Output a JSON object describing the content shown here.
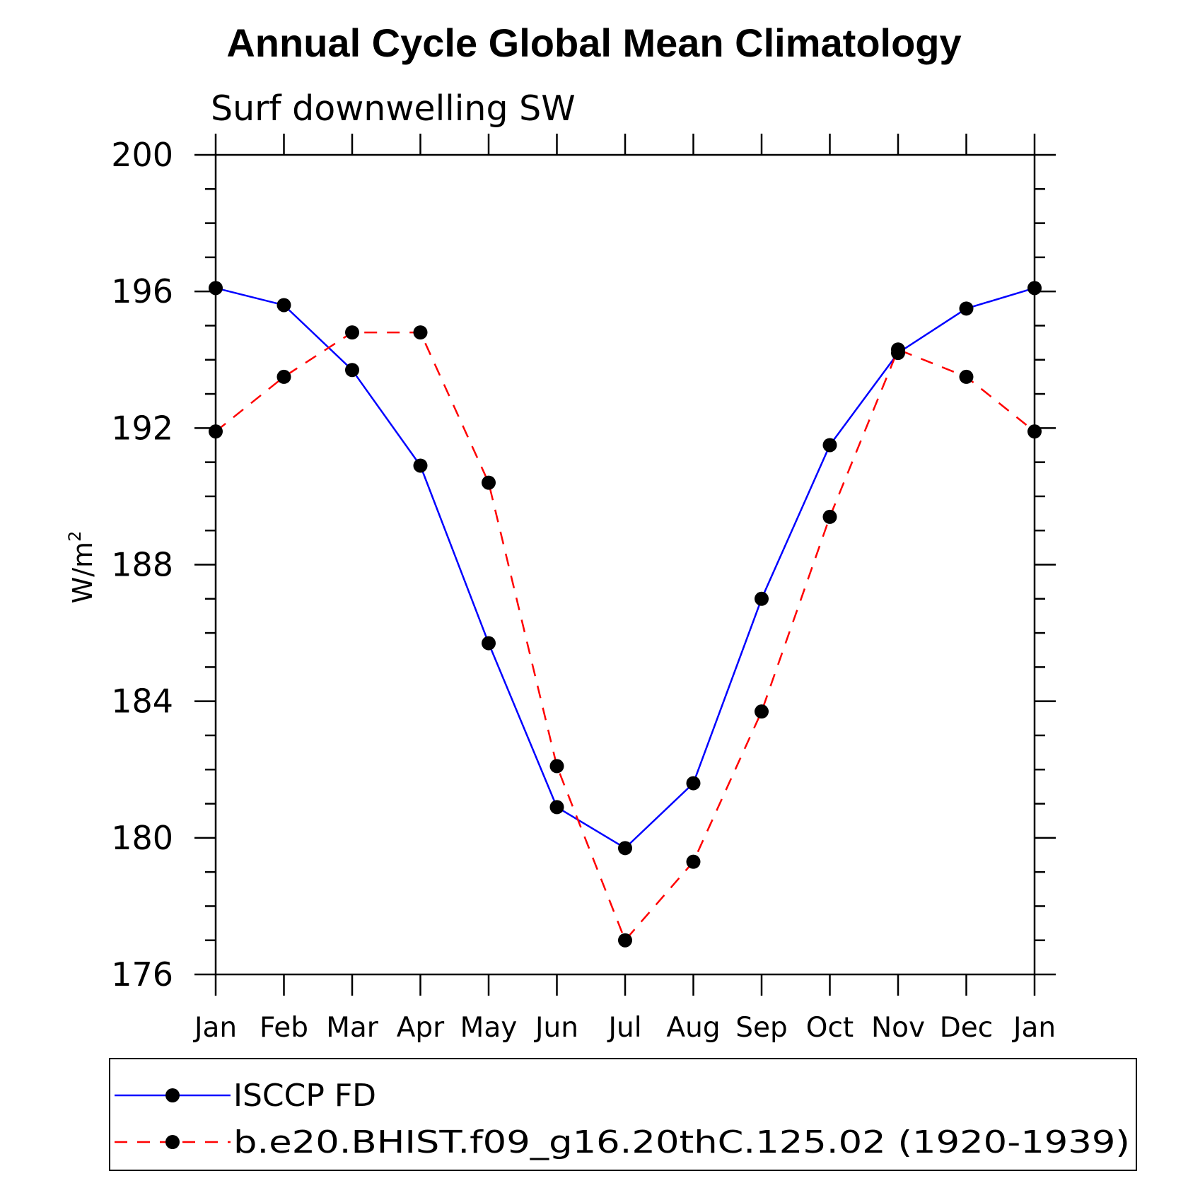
{
  "chart_data": {
    "type": "line",
    "title": "Annual Cycle Global Mean Climatology",
    "subtitle": "Surf downwelling SW",
    "ylabel": "W/m",
    "ylabel_superscript": "2",
    "xlabel": "",
    "ylim": [
      176,
      200
    ],
    "y_ticks": [
      176,
      180,
      184,
      188,
      192,
      196,
      200
    ],
    "y_tick_labels": [
      "176",
      "180",
      "184",
      "188",
      "192",
      "196",
      "200"
    ],
    "y_minor_step": 1,
    "grid": false,
    "categories": [
      "Jan",
      "Feb",
      "Mar",
      "Apr",
      "May",
      "Jun",
      "Jul",
      "Aug",
      "Sep",
      "Oct",
      "Nov",
      "Dec",
      "Jan"
    ],
    "legend_position": "bottom",
    "series": [
      {
        "name": "ISCCP FD",
        "color": "#0000ff",
        "line_style": "solid",
        "marker": "filled-circle",
        "marker_color": "#000000",
        "values": [
          196.1,
          195.6,
          193.7,
          190.9,
          185.7,
          180.9,
          179.7,
          181.6,
          187.0,
          191.5,
          194.2,
          195.5,
          196.1
        ]
      },
      {
        "name": "b.e20.BHIST.f09_g16.20thC.125.02 (1920-1939)",
        "color": "#ff0000",
        "line_style": "dashed",
        "marker": "filled-circle",
        "marker_color": "#000000",
        "values": [
          191.9,
          193.5,
          194.8,
          194.8,
          190.4,
          182.1,
          177.0,
          179.3,
          183.7,
          189.4,
          194.3,
          193.5,
          191.9
        ]
      }
    ]
  }
}
